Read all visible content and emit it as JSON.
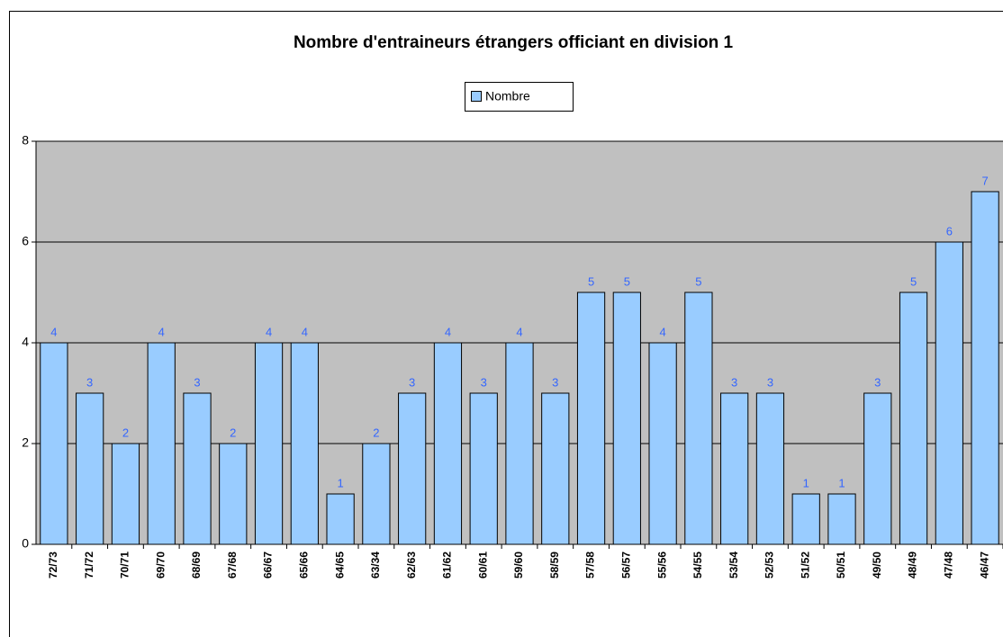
{
  "chart_data": {
    "type": "bar",
    "title": "Nombre d'entraineurs étrangers officiant  en division 1",
    "categories": [
      "72/73",
      "71/72",
      "70/71",
      "69/70",
      "68/69",
      "67/68",
      "66/67",
      "65/66",
      "64/65",
      "63/34",
      "62/63",
      "61/62",
      "60/61",
      "59/60",
      "58/59",
      "57/58",
      "56/57",
      "55/56",
      "54/55",
      "53/54",
      "52/53",
      "51/52",
      "50/51",
      "49/50",
      "48/49",
      "47/48",
      "46/47"
    ],
    "series": [
      {
        "name": "Nombre",
        "color": "#99ccff",
        "values": [
          4,
          3,
          2,
          4,
          3,
          2,
          4,
          4,
          1,
          2,
          3,
          4,
          3,
          4,
          3,
          5,
          5,
          4,
          5,
          3,
          3,
          1,
          1,
          3,
          5,
          6,
          7
        ]
      }
    ],
    "ylim": [
      0,
      8
    ],
    "yticks": [
      0,
      2,
      4,
      6,
      8
    ],
    "grid": true,
    "legend": "top",
    "plot_background": "#c0c0c0",
    "value_label_color": "#3366ff"
  }
}
